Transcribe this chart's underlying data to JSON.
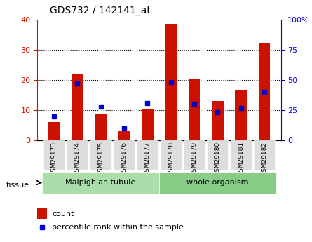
{
  "title": "GDS732 / 142141_at",
  "samples": [
    "GSM29173",
    "GSM29174",
    "GSM29175",
    "GSM29176",
    "GSM29177",
    "GSM29178",
    "GSM29179",
    "GSM29180",
    "GSM29181",
    "GSM29182"
  ],
  "counts": [
    6,
    22,
    8.5,
    3,
    10.5,
    38.5,
    20.5,
    13,
    16.5,
    32
  ],
  "percentiles": [
    20,
    47,
    28,
    10,
    31,
    48,
    30,
    23,
    27,
    40
  ],
  "ylim_left": [
    0,
    40
  ],
  "ylim_right": [
    0,
    100
  ],
  "yticks_left": [
    0,
    10,
    20,
    30,
    40
  ],
  "yticks_right": [
    0,
    25,
    50,
    75,
    100
  ],
  "bar_color": "#cc1100",
  "dot_color": "#0000cc",
  "tissue_groups": [
    {
      "label": "Malpighian tubule",
      "start": 0,
      "end": 5,
      "color": "#aaddaa"
    },
    {
      "label": "whole organism",
      "start": 5,
      "end": 10,
      "color": "#88cc88"
    }
  ],
  "tissue_label": "tissue",
  "legend_count": "count",
  "legend_percentile": "percentile rank within the sample",
  "grid_color": "#000000",
  "axis_color_left": "#cc1100",
  "axis_color_right": "#0000cc",
  "tick_label_bg": "#dddddd",
  "bar_width": 0.5
}
